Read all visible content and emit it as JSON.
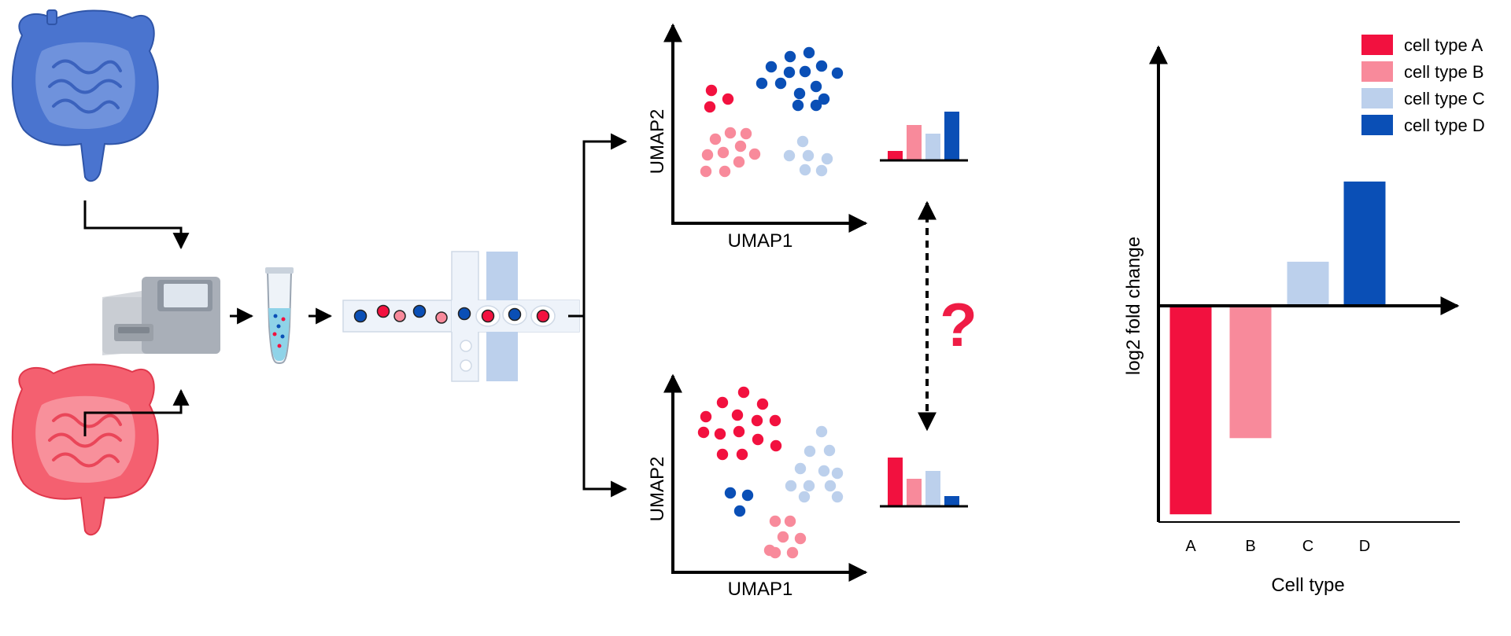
{
  "colors": {
    "type_a": "#f2113f",
    "type_b": "#f88a9b",
    "type_c": "#bcd0ec",
    "type_d": "#0a4fb6",
    "healthy_gut": "#4a74cf",
    "disease_gut": "#f46070",
    "question": "#ef1c45"
  },
  "icons": {
    "top_organ": "intestine-icon",
    "bottom_organ": "intestine-icon",
    "machine": "sequencer-icon",
    "tube": "sample-tube-icon",
    "chip": "microfluidic-chip-icon"
  },
  "umap_top": {
    "xlabel": "UMAP1",
    "ylabel": "UMAP2"
  },
  "umap_bottom": {
    "xlabel": "UMAP1",
    "ylabel": "UMAP2"
  },
  "question_mark": "?",
  "chart_data": {
    "type": "bar",
    "categories": [
      "A",
      "B",
      "C",
      "D"
    ],
    "values": [
      -2.6,
      -1.65,
      0.55,
      1.55
    ],
    "xlabel": "Cell type",
    "ylabel": "log2 fold change",
    "ylim": [
      -2.7,
      3.2
    ],
    "grid": false,
    "legend": {
      "placement": "top-right",
      "entries": [
        "cell type A",
        "cell type B",
        "cell type C",
        "cell type D"
      ]
    }
  }
}
